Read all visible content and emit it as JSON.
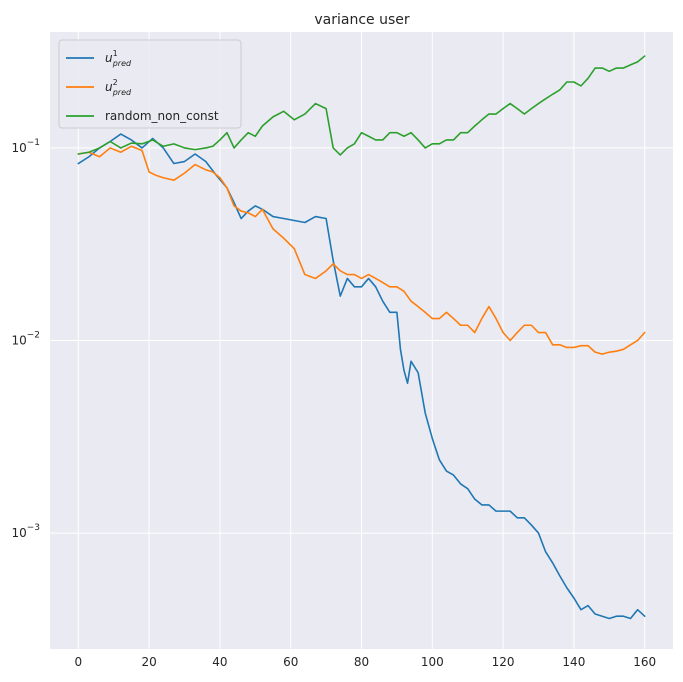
{
  "chart_data": {
    "type": "line",
    "title": "variance user",
    "xlabel": "",
    "ylabel": "",
    "xlim": [
      -8,
      168
    ],
    "ylim": [
      0.00025,
      0.4
    ],
    "yscale": "log",
    "grid": true,
    "legend_position": "top-left",
    "x_ticks": [
      0,
      20,
      40,
      60,
      80,
      100,
      120,
      140,
      160
    ],
    "y_ticks": [
      {
        "value": 0.1,
        "base": "10",
        "exp": "−1"
      },
      {
        "value": 0.01,
        "base": "10",
        "exp": "−2"
      },
      {
        "value": 0.001,
        "base": "10",
        "exp": "−3"
      }
    ],
    "series": [
      {
        "name": "u_pred^1",
        "legend_main": "u",
        "legend_sup": "1",
        "legend_sub": "pred",
        "color": "#1f77b4",
        "points": [
          [
            0,
            0.083
          ],
          [
            3,
            0.09
          ],
          [
            6,
            0.1
          ],
          [
            9,
            0.108
          ],
          [
            12,
            0.118
          ],
          [
            15,
            0.11
          ],
          [
            18,
            0.1
          ],
          [
            21,
            0.112
          ],
          [
            24,
            0.1
          ],
          [
            27,
            0.083
          ],
          [
            30,
            0.085
          ],
          [
            33,
            0.093
          ],
          [
            36,
            0.085
          ],
          [
            39,
            0.072
          ],
          [
            42,
            0.062
          ],
          [
            44,
            0.052
          ],
          [
            46,
            0.043
          ],
          [
            48,
            0.047
          ],
          [
            50,
            0.05
          ],
          [
            52,
            0.048
          ],
          [
            55,
            0.044
          ],
          [
            58,
            0.043
          ],
          [
            61,
            0.042
          ],
          [
            64,
            0.041
          ],
          [
            67,
            0.044
          ],
          [
            70,
            0.043
          ],
          [
            72,
            0.026
          ],
          [
            74,
            0.017
          ],
          [
            76,
            0.021
          ],
          [
            78,
            0.019
          ],
          [
            80,
            0.019
          ],
          [
            82,
            0.021
          ],
          [
            84,
            0.019
          ],
          [
            86,
            0.016
          ],
          [
            88,
            0.014
          ],
          [
            90,
            0.014
          ],
          [
            91,
            0.009
          ],
          [
            92,
            0.007
          ],
          [
            93,
            0.006
          ],
          [
            94,
            0.0078
          ],
          [
            96,
            0.0068
          ],
          [
            98,
            0.0042
          ],
          [
            100,
            0.0031
          ],
          [
            102,
            0.0024
          ],
          [
            104,
            0.0021
          ],
          [
            106,
            0.002
          ],
          [
            108,
            0.0018
          ],
          [
            110,
            0.0017
          ],
          [
            112,
            0.0015
          ],
          [
            114,
            0.0014
          ],
          [
            116,
            0.0014
          ],
          [
            118,
            0.0013
          ],
          [
            120,
            0.0013
          ],
          [
            122,
            0.0013
          ],
          [
            124,
            0.0012
          ],
          [
            126,
            0.0012
          ],
          [
            128,
            0.0011
          ],
          [
            130,
            0.001
          ],
          [
            132,
            0.0008
          ],
          [
            134,
            0.0007
          ],
          [
            136,
            0.0006
          ],
          [
            138,
            0.00052
          ],
          [
            140,
            0.00046
          ],
          [
            142,
            0.0004
          ],
          [
            144,
            0.00042
          ],
          [
            146,
            0.00038
          ],
          [
            148,
            0.00037
          ],
          [
            150,
            0.00036
          ],
          [
            152,
            0.00037
          ],
          [
            154,
            0.00037
          ],
          [
            156,
            0.00036
          ],
          [
            158,
            0.0004
          ],
          [
            160,
            0.00037
          ]
        ]
      },
      {
        "name": "u_pred^2",
        "legend_main": "u",
        "legend_sup": "2",
        "legend_sub": "pred",
        "color": "#ff7f0e",
        "points": [
          [
            0,
            0.093
          ],
          [
            3,
            0.095
          ],
          [
            6,
            0.09
          ],
          [
            9,
            0.1
          ],
          [
            12,
            0.095
          ],
          [
            15,
            0.102
          ],
          [
            18,
            0.097
          ],
          [
            20,
            0.075
          ],
          [
            22,
            0.072
          ],
          [
            24,
            0.07
          ],
          [
            27,
            0.068
          ],
          [
            30,
            0.074
          ],
          [
            33,
            0.082
          ],
          [
            36,
            0.077
          ],
          [
            38,
            0.075
          ],
          [
            40,
            0.07
          ],
          [
            42,
            0.062
          ],
          [
            44,
            0.05
          ],
          [
            46,
            0.047
          ],
          [
            48,
            0.046
          ],
          [
            50,
            0.044
          ],
          [
            52,
            0.048
          ],
          [
            55,
            0.038
          ],
          [
            58,
            0.034
          ],
          [
            61,
            0.03
          ],
          [
            64,
            0.022
          ],
          [
            67,
            0.021
          ],
          [
            70,
            0.023
          ],
          [
            72,
            0.025
          ],
          [
            74,
            0.023
          ],
          [
            76,
            0.022
          ],
          [
            78,
            0.022
          ],
          [
            80,
            0.021
          ],
          [
            82,
            0.022
          ],
          [
            84,
            0.021
          ],
          [
            86,
            0.02
          ],
          [
            88,
            0.019
          ],
          [
            90,
            0.019
          ],
          [
            92,
            0.018
          ],
          [
            94,
            0.016
          ],
          [
            96,
            0.015
          ],
          [
            98,
            0.014
          ],
          [
            100,
            0.013
          ],
          [
            102,
            0.013
          ],
          [
            104,
            0.014
          ],
          [
            106,
            0.013
          ],
          [
            108,
            0.012
          ],
          [
            110,
            0.012
          ],
          [
            112,
            0.011
          ],
          [
            114,
            0.013
          ],
          [
            116,
            0.015
          ],
          [
            118,
            0.013
          ],
          [
            120,
            0.011
          ],
          [
            122,
            0.01
          ],
          [
            124,
            0.011
          ],
          [
            126,
            0.012
          ],
          [
            128,
            0.012
          ],
          [
            130,
            0.011
          ],
          [
            132,
            0.011
          ],
          [
            134,
            0.0095
          ],
          [
            136,
            0.0095
          ],
          [
            138,
            0.0092
          ],
          [
            140,
            0.0092
          ],
          [
            142,
            0.0094
          ],
          [
            144,
            0.0094
          ],
          [
            146,
            0.0087
          ],
          [
            148,
            0.0085
          ],
          [
            150,
            0.0087
          ],
          [
            152,
            0.0088
          ],
          [
            154,
            0.009
          ],
          [
            156,
            0.0095
          ],
          [
            158,
            0.01
          ],
          [
            160,
            0.011
          ]
        ]
      },
      {
        "name": "random_non_const",
        "legend_main": "random_non_const",
        "color": "#2ca02c",
        "points": [
          [
            0,
            0.093
          ],
          [
            3,
            0.095
          ],
          [
            6,
            0.1
          ],
          [
            9,
            0.108
          ],
          [
            12,
            0.1
          ],
          [
            15,
            0.106
          ],
          [
            18,
            0.105
          ],
          [
            21,
            0.11
          ],
          [
            24,
            0.102
          ],
          [
            27,
            0.105
          ],
          [
            30,
            0.1
          ],
          [
            33,
            0.098
          ],
          [
            36,
            0.1
          ],
          [
            38,
            0.102
          ],
          [
            40,
            0.11
          ],
          [
            42,
            0.12
          ],
          [
            44,
            0.1
          ],
          [
            46,
            0.11
          ],
          [
            48,
            0.12
          ],
          [
            50,
            0.115
          ],
          [
            52,
            0.13
          ],
          [
            55,
            0.145
          ],
          [
            58,
            0.155
          ],
          [
            61,
            0.14
          ],
          [
            64,
            0.15
          ],
          [
            67,
            0.17
          ],
          [
            70,
            0.16
          ],
          [
            72,
            0.1
          ],
          [
            74,
            0.092
          ],
          [
            76,
            0.1
          ],
          [
            78,
            0.105
          ],
          [
            80,
            0.12
          ],
          [
            82,
            0.115
          ],
          [
            84,
            0.11
          ],
          [
            86,
            0.11
          ],
          [
            88,
            0.12
          ],
          [
            90,
            0.12
          ],
          [
            92,
            0.115
          ],
          [
            94,
            0.12
          ],
          [
            96,
            0.11
          ],
          [
            98,
            0.1
          ],
          [
            100,
            0.105
          ],
          [
            102,
            0.105
          ],
          [
            104,
            0.11
          ],
          [
            106,
            0.11
          ],
          [
            108,
            0.12
          ],
          [
            110,
            0.12
          ],
          [
            112,
            0.13
          ],
          [
            114,
            0.14
          ],
          [
            116,
            0.15
          ],
          [
            118,
            0.15
          ],
          [
            120,
            0.16
          ],
          [
            122,
            0.17
          ],
          [
            124,
            0.16
          ],
          [
            126,
            0.15
          ],
          [
            128,
            0.16
          ],
          [
            130,
            0.17
          ],
          [
            132,
            0.18
          ],
          [
            134,
            0.19
          ],
          [
            136,
            0.2
          ],
          [
            138,
            0.22
          ],
          [
            140,
            0.22
          ],
          [
            142,
            0.21
          ],
          [
            144,
            0.23
          ],
          [
            146,
            0.26
          ],
          [
            148,
            0.26
          ],
          [
            150,
            0.25
          ],
          [
            152,
            0.26
          ],
          [
            154,
            0.26
          ],
          [
            156,
            0.27
          ],
          [
            158,
            0.28
          ],
          [
            160,
            0.3
          ]
        ]
      }
    ]
  }
}
